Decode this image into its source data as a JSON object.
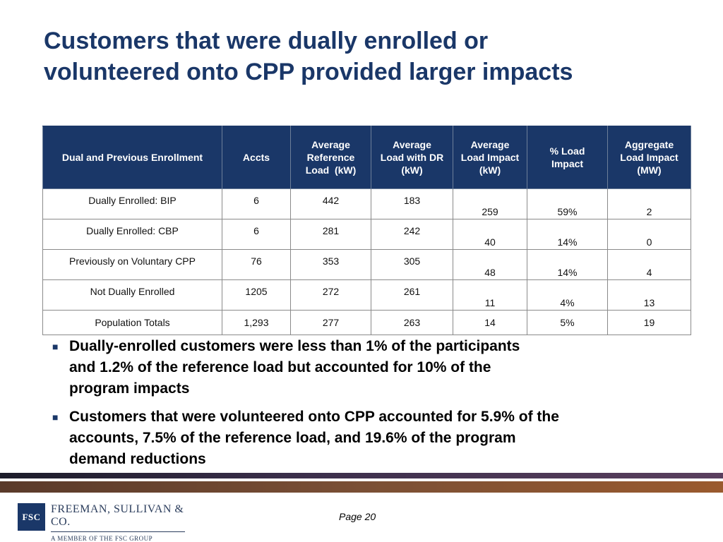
{
  "title_line1": "Customers that were dually enrolled or",
  "title_line2": "volunteered onto CPP provided larger impacts",
  "table": {
    "headers": {
      "group": "Dual and Previous Enrollment",
      "accts": "Accts",
      "ref_line1": "Average",
      "ref_line2": "Reference",
      "ref_line3": "Load  (kW)",
      "dr_line1": "Average",
      "dr_line2": "Load with DR",
      "dr_line3": "(kW)",
      "impact_line1": "Average",
      "impact_line2": "Load Impact",
      "impact_line3": "(kW)",
      "pct_line1": "% Load",
      "pct_line2": "Impact",
      "agg_line1": "Aggregate",
      "agg_line2": "Load Impact",
      "agg_line3": "(MW)"
    },
    "rows": [
      {
        "group": "Dually Enrolled: BIP",
        "accts": "6",
        "ref": "442",
        "dr": "183",
        "impact": "259",
        "pct": "59%",
        "agg": "2"
      },
      {
        "group": "Dually Enrolled: CBP",
        "accts": "6",
        "ref": "281",
        "dr": "242",
        "impact": "40",
        "pct": "14%",
        "agg": "0"
      },
      {
        "group": "Previously on Voluntary CPP",
        "accts": "76",
        "ref": "353",
        "dr": "305",
        "impact": "48",
        "pct": "14%",
        "agg": "4"
      },
      {
        "group": "Not Dually Enrolled",
        "accts": "1205",
        "ref": "272",
        "dr": "261",
        "impact": "11",
        "pct": "4%",
        "agg": "13"
      },
      {
        "group": "Population Totals",
        "accts": "1,293",
        "ref": "277",
        "dr": "263",
        "impact": "14",
        "pct": "5%",
        "agg": "19"
      }
    ]
  },
  "bullets": [
    {
      "icon": "square-bullet-icon",
      "line1": "Dually-enrolled customers were less than 1% of the participants",
      "line2": "and 1.2% of the reference load but accounted for 10% of the",
      "line3": "program impacts"
    },
    {
      "icon": "square-bullet-icon",
      "line1": "Customers that were volunteered onto CPP accounted for 5.9% of the",
      "line2": "accounts, 7.5% of the reference load, and 19.6% of the program",
      "line3": "demand reductions"
    }
  ],
  "footer": {
    "logo_text": "FSC",
    "firm_name": "FREEMAN, SULLIVAN & CO.",
    "firm_sub": "A MEMBER OF THE FSC GROUP",
    "page_label": "Page 20"
  },
  "colors": {
    "accent": "#1a3768",
    "bar_dark": "#3a2e4a",
    "bar_brown": "#7a4f35"
  }
}
